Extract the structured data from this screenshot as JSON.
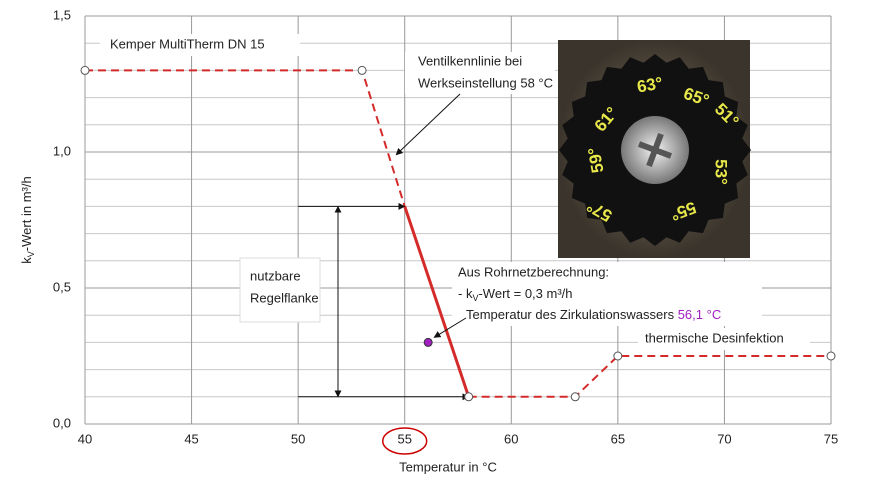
{
  "chart_data": {
    "type": "line",
    "title": "Kemper MultiTherm DN 15",
    "x_label": "Temperatur  in °C",
    "y_label": {
      "k": "k",
      "sub": "V",
      "rest": "-Wert  in m³/h"
    },
    "xlim": [
      40,
      75
    ],
    "xticks": [
      40,
      45,
      50,
      55,
      60,
      65,
      70,
      75
    ],
    "ylim": [
      0,
      1.5
    ],
    "yticks": [
      {
        "value": 0,
        "label": "0,0"
      },
      {
        "value": 0.5,
        "label": "0,5"
      },
      {
        "value": 1,
        "label": "1,0"
      },
      {
        "value": 1.5,
        "label": "1,5"
      }
    ],
    "yminor": [
      0.1,
      0.2,
      0.3,
      0.4,
      0.6,
      0.7,
      0.8,
      0.9,
      1.1,
      1.2,
      1.3,
      1.4
    ],
    "grid": true,
    "series": [
      {
        "color": "#d42a2a",
        "dashed": true,
        "x": [
          40,
          53,
          55
        ],
        "values": [
          1.3,
          1.3,
          0.8
        ],
        "markers": [
          0,
          1
        ]
      },
      {
        "color": "#d42a2a",
        "dashed": false,
        "x": [
          55,
          58
        ],
        "values": [
          0.8,
          0.1
        ],
        "markers": [
          1
        ]
      },
      {
        "color": "#d42a2a",
        "dashed": true,
        "x": [
          58,
          63,
          65,
          75
        ],
        "values": [
          0.1,
          0.1,
          0.25,
          0.25
        ],
        "markers": [
          1,
          2,
          3
        ]
      }
    ],
    "point": {
      "x": 56.1,
      "y": 0.3,
      "color": "#a020c0"
    },
    "highlight_tick": 3,
    "annotations": {
      "valve": [
        "Ventilkennlinie bei",
        "Werkseinstellung 58 °C"
      ],
      "range": [
        "nutzbare",
        "Regelflanke"
      ],
      "calc": {
        "title": "Aus Rohrnetzberechnung:",
        "kv_pre": "- k",
        "kv_sub": "V",
        "kv_post": "-Wert = 0,3 m³/h",
        "temp": "Temperatur des Zirkulationswassers ",
        "temp_value": "56,1 °C"
      },
      "disinfect": "thermische Desinfektion"
    },
    "photo_labels": [
      "63°",
      "65°",
      "51°",
      "53°",
      "55°",
      "57°",
      "59°",
      "61°"
    ]
  }
}
